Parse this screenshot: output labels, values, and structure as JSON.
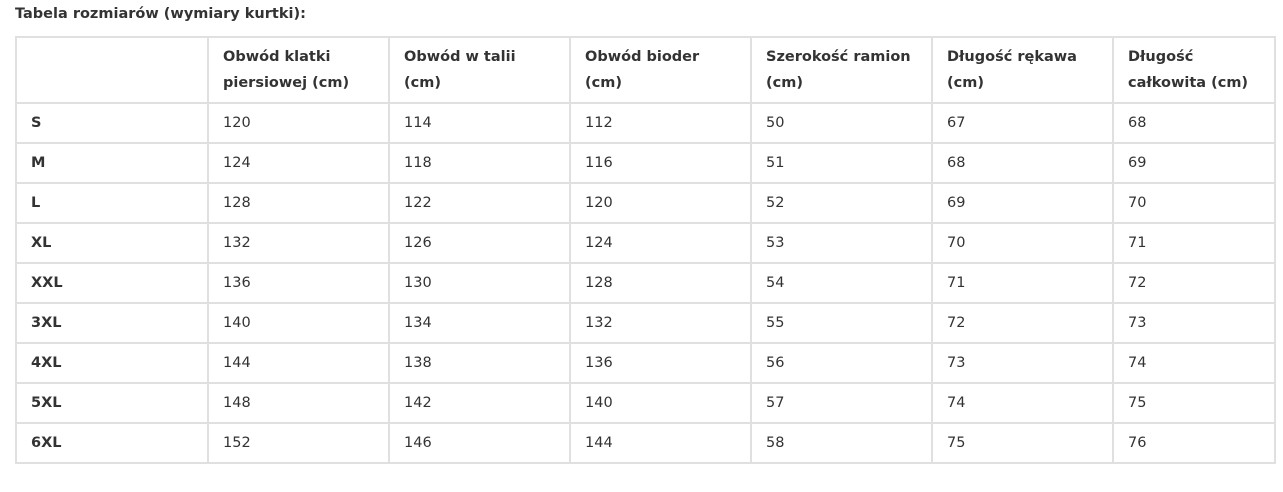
{
  "title": "Tabela rozmiarów (wymiary kurtki):",
  "headers": [
    "",
    "Obwód klatki piersiowej (cm)",
    "Obwód w talii (cm)",
    "Obwód bioder (cm)",
    "Szerokość ramion (cm)",
    "Długość rękawa (cm)",
    "Długość całkowita (cm)"
  ],
  "rows": [
    [
      "S",
      "120",
      "114",
      "112",
      "50",
      "67",
      "68"
    ],
    [
      "M",
      "124",
      "118",
      "116",
      "51",
      "68",
      "69"
    ],
    [
      "L",
      "128",
      "122",
      "120",
      "52",
      "69",
      "70"
    ],
    [
      "XL",
      "132",
      "126",
      "124",
      "53",
      "70",
      "71"
    ],
    [
      "XXL",
      "136",
      "130",
      "128",
      "54",
      "71",
      "72"
    ],
    [
      "3XL",
      "140",
      "134",
      "132",
      "55",
      "72",
      "73"
    ],
    [
      "4XL",
      "144",
      "138",
      "136",
      "56",
      "73",
      "74"
    ],
    [
      "5XL",
      "148",
      "142",
      "140",
      "57",
      "74",
      "75"
    ],
    [
      "6XL",
      "152",
      "146",
      "144",
      "58",
      "75",
      "76"
    ]
  ]
}
